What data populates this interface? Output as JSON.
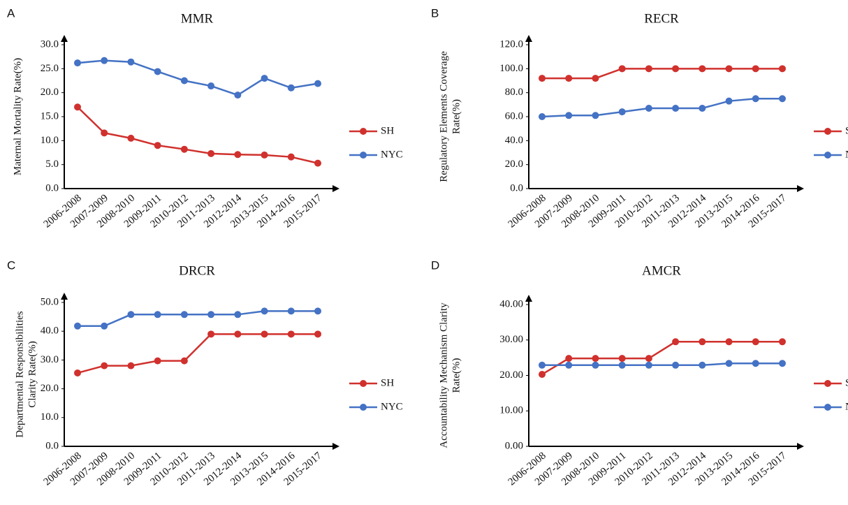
{
  "chart_data": [
    {
      "type": "line",
      "panel": "A",
      "title": "MMR",
      "ylabel": [
        "Maternal Mortality Rate(%)"
      ],
      "categories": [
        "2006-2008",
        "2007-2009",
        "2008-2010",
        "2009-2011",
        "2010-2012",
        "2011-2013",
        "2012-2014",
        "2013-2015",
        "2014-2016",
        "2015-2017"
      ],
      "series": [
        {
          "name": "SH",
          "color": "#d0312d",
          "values": [
            17.0,
            11.6,
            10.5,
            9.0,
            8.2,
            7.3,
            7.1,
            7.0,
            6.6,
            5.3
          ]
        },
        {
          "name": "NYC",
          "color": "#4472c4",
          "values": [
            26.2,
            26.7,
            26.4,
            24.4,
            22.5,
            21.4,
            19.5,
            23.0,
            21.0,
            21.9
          ]
        }
      ],
      "ylim": [
        0,
        30
      ],
      "yticks": [
        {
          "value": 0,
          "label": "0.0"
        },
        {
          "value": 5,
          "label": "5.0"
        },
        {
          "value": 10,
          "label": "10.0"
        },
        {
          "value": 15,
          "label": "15.0"
        },
        {
          "value": 20,
          "label": "20.0"
        },
        {
          "value": 25,
          "label": "25.0"
        },
        {
          "value": 30,
          "label": "30.0"
        }
      ]
    },
    {
      "type": "line",
      "panel": "B",
      "title": "RECR",
      "ylabel": [
        "Regulatory Elements Coverage",
        "Rate(%)"
      ],
      "categories": [
        "2006-2008",
        "2007-2009",
        "2008-2010",
        "2009-2011",
        "2010-2012",
        "2011-2013",
        "2012-2014",
        "2013-2015",
        "2014-2016",
        "2015-2017"
      ],
      "series": [
        {
          "name": "SH",
          "color": "#d0312d",
          "values": [
            92,
            92,
            92,
            100,
            100,
            100,
            100,
            100,
            100,
            100
          ]
        },
        {
          "name": "NYC",
          "color": "#4472c4",
          "values": [
            60,
            61,
            61,
            64,
            67,
            67,
            67,
            73,
            75,
            75
          ]
        }
      ],
      "ylim": [
        0,
        120
      ],
      "yticks": [
        {
          "value": 0,
          "label": "0.0"
        },
        {
          "value": 20,
          "label": "20.0"
        },
        {
          "value": 40,
          "label": "40.0"
        },
        {
          "value": 60,
          "label": "60.0"
        },
        {
          "value": 80,
          "label": "80.0"
        },
        {
          "value": 100,
          "label": "100.0"
        },
        {
          "value": 120,
          "label": "120.0"
        }
      ]
    },
    {
      "type": "line",
      "panel": "C",
      "title": "DRCR",
      "ylabel": [
        "Departmental Responsibilities",
        "Clarity Rate(%)"
      ],
      "categories": [
        "2006-2008",
        "2007-2009",
        "2008-2010",
        "2009-2011",
        "2010-2012",
        "2011-2013",
        "2012-2014",
        "2013-2015",
        "2014-2016",
        "2015-2017"
      ],
      "series": [
        {
          "name": "SH",
          "color": "#d0312d",
          "values": [
            25.5,
            28.0,
            28.0,
            29.7,
            29.7,
            39.0,
            39.0,
            39.0,
            39.0,
            39.0
          ]
        },
        {
          "name": "NYC",
          "color": "#4472c4",
          "values": [
            41.8,
            41.8,
            45.8,
            45.8,
            45.8,
            45.8,
            45.8,
            47.0,
            47.0,
            47.0
          ]
        }
      ],
      "ylim": [
        0,
        50
      ],
      "yticks": [
        {
          "value": 0,
          "label": "0.0"
        },
        {
          "value": 10,
          "label": "10.0"
        },
        {
          "value": 20,
          "label": "20.0"
        },
        {
          "value": 30,
          "label": "30.0"
        },
        {
          "value": 40,
          "label": "40.0"
        },
        {
          "value": 50,
          "label": "50.0"
        }
      ]
    },
    {
      "type": "line",
      "panel": "D",
      "title": "AMCR",
      "ylabel": [
        "Accountability Mechanism Clarity",
        "Rate(%)"
      ],
      "categories": [
        "2006-2008",
        "2007-2009",
        "2008-2010",
        "2009-2011",
        "2010-2012",
        "2011-2013",
        "2012-2014",
        "2013-2015",
        "2014-2016",
        "2015-2017"
      ],
      "series": [
        {
          "name": "SH",
          "color": "#d0312d",
          "values": [
            20.3,
            24.8,
            24.8,
            24.8,
            24.8,
            29.5,
            29.5,
            29.5,
            29.5,
            29.5
          ]
        },
        {
          "name": "NYC",
          "color": "#4472c4",
          "values": [
            22.9,
            22.9,
            22.9,
            22.9,
            22.9,
            22.9,
            22.9,
            23.4,
            23.4,
            23.4
          ]
        }
      ],
      "ylim": [
        0,
        40
      ],
      "yticks": [
        {
          "value": 0,
          "label": "0.00"
        },
        {
          "value": 10,
          "label": "10.00"
        },
        {
          "value": 20,
          "label": "20.00"
        },
        {
          "value": 30,
          "label": "30.00"
        },
        {
          "value": 40,
          "label": "40.00"
        }
      ]
    }
  ]
}
